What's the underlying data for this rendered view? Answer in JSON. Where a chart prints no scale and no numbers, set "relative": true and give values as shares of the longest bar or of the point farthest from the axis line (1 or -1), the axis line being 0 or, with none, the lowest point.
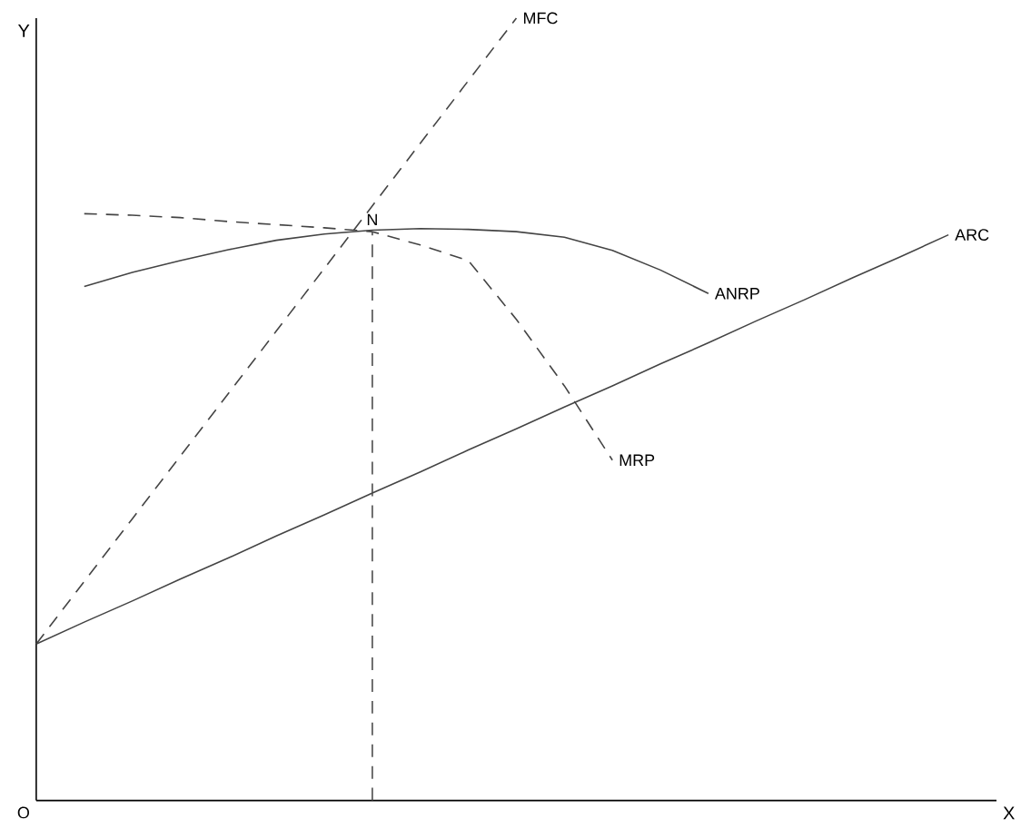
{
  "chart_data": {
    "type": "line",
    "relative": true,
    "xlabel": "X",
    "ylabel": "Y",
    "categories": [
      null,
      null,
      null,
      null,
      null,
      null,
      null,
      null,
      null,
      null,
      null,
      null,
      null,
      null,
      null,
      null,
      null,
      null,
      null,
      null,
      null
    ],
    "series": [
      {
        "name": "MFC",
        "color": "#444444",
        "line_style": "dashed",
        "values": [
          0.2,
          0.28,
          0.36,
          0.44,
          0.52,
          0.6,
          0.68,
          0.76,
          0.84,
          0.92,
          1.0,
          null,
          null,
          null,
          null,
          null,
          null,
          null,
          null,
          null,
          null
        ]
      },
      {
        "name": "ARC",
        "color": "#444444",
        "line_style": "solid",
        "values": [
          0.2,
          0.228,
          0.255,
          0.283,
          0.31,
          0.338,
          0.365,
          0.393,
          0.42,
          0.448,
          0.475,
          0.503,
          0.53,
          0.558,
          0.585,
          0.613,
          0.64,
          0.668,
          0.695,
          0.723,
          null
        ]
      },
      {
        "name": "ANRP",
        "color": "#444444",
        "line_style": "solid",
        "values": [
          null,
          0.657,
          0.675,
          0.69,
          0.704,
          0.716,
          0.724,
          0.729,
          0.731,
          0.73,
          0.727,
          0.72,
          0.703,
          0.678,
          0.648,
          null,
          null,
          null,
          null,
          null,
          null
        ]
      },
      {
        "name": "MRP",
        "color": "#444444",
        "line_style": "dashed",
        "values": [
          null,
          0.75,
          0.748,
          0.745,
          0.74,
          0.736,
          0.732,
          0.727,
          0.71,
          0.69,
          0.615,
          0.53,
          0.435,
          null,
          null,
          null,
          null,
          null,
          null,
          null,
          null
        ]
      }
    ],
    "annotations": [
      "N",
      "O"
    ]
  }
}
